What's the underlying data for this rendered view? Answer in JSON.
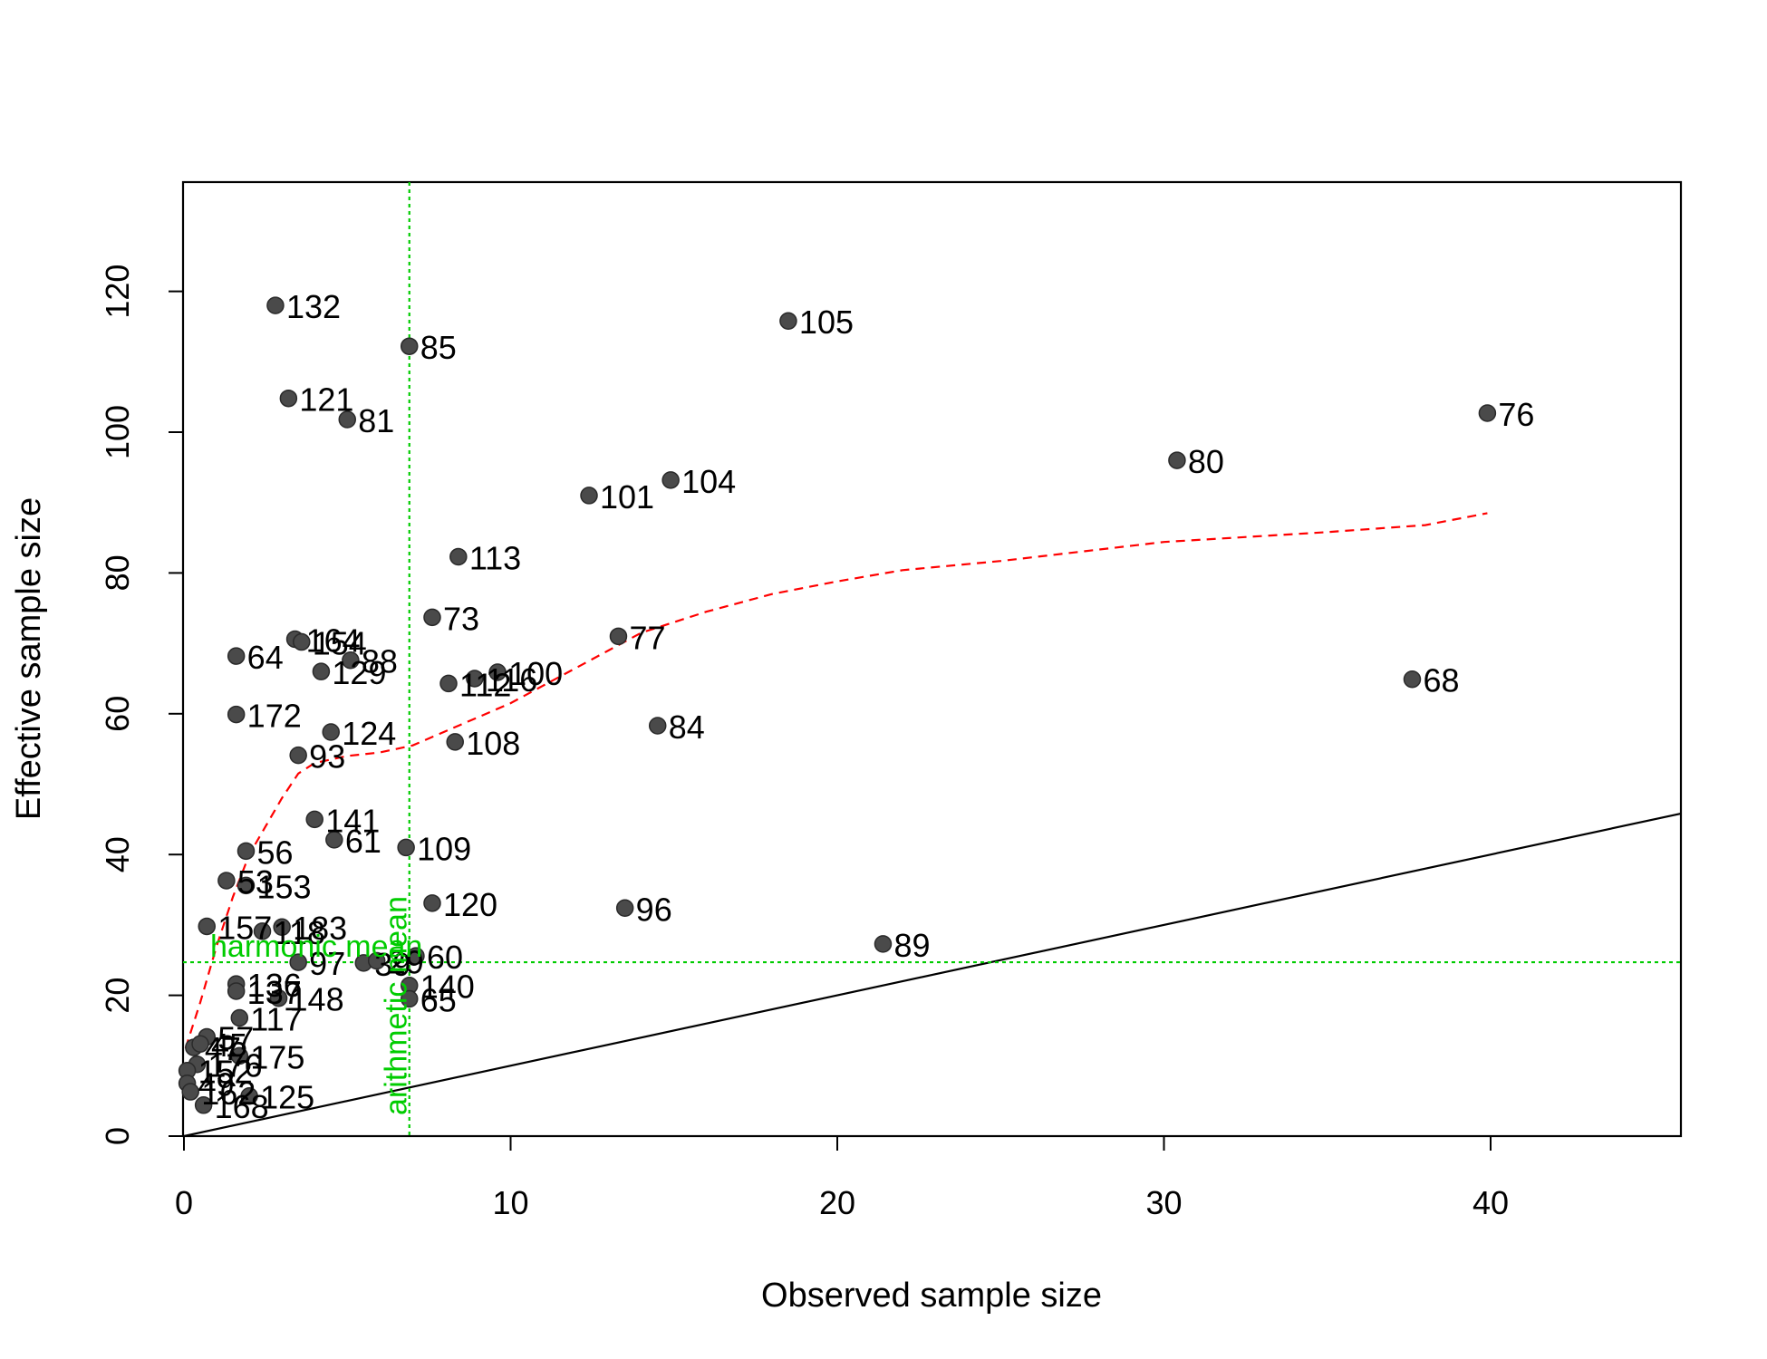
{
  "chart_data": {
    "type": "scatter",
    "title": "",
    "xlabel": "Observed sample size",
    "ylabel": "Effective sample size",
    "xlim": [
      0,
      46
    ],
    "ylim": [
      0,
      135
    ],
    "x_ticks": [
      0,
      10,
      20,
      30,
      40
    ],
    "x_tick_labels": [
      "0",
      "10",
      "20",
      "30",
      "40"
    ],
    "y_ticks": [
      0,
      20,
      40,
      60,
      80,
      100,
      120
    ],
    "y_tick_labels": [
      "0",
      "20",
      "40",
      "60",
      "80",
      "100",
      "120"
    ],
    "grid": false,
    "legend": "none",
    "point_color": "#4a4a4a",
    "points": [
      {
        "id": "132",
        "x": 2.8,
        "y": 118
      },
      {
        "id": "85",
        "x": 6.9,
        "y": 112.2
      },
      {
        "id": "105",
        "x": 18.5,
        "y": 115.8
      },
      {
        "id": "121",
        "x": 3.2,
        "y": 104.8
      },
      {
        "id": "81",
        "x": 5.0,
        "y": 101.8
      },
      {
        "id": "76",
        "x": 39.9,
        "y": 102.7
      },
      {
        "id": "80",
        "x": 30.4,
        "y": 96
      },
      {
        "id": "101",
        "x": 12.4,
        "y": 91
      },
      {
        "id": "104",
        "x": 14.9,
        "y": 93.2
      },
      {
        "id": "113",
        "x": 8.4,
        "y": 82.3
      },
      {
        "id": "73",
        "x": 7.6,
        "y": 73.7
      },
      {
        "id": "77",
        "x": 13.3,
        "y": 71
      },
      {
        "id": "164",
        "x": 3.4,
        "y": 70.6
      },
      {
        "id": "154",
        "x": 3.6,
        "y": 70.2
      },
      {
        "id": "88",
        "x": 5.1,
        "y": 67.6
      },
      {
        "id": "64",
        "x": 1.6,
        "y": 68.2
      },
      {
        "id": "129",
        "x": 4.2,
        "y": 66
      },
      {
        "id": "100",
        "x": 9.6,
        "y": 65.9
      },
      {
        "id": "116",
        "x": 8.9,
        "y": 65
      },
      {
        "id": "112",
        "x": 8.1,
        "y": 64.3
      },
      {
        "id": "68",
        "x": 37.6,
        "y": 64.9
      },
      {
        "id": "172",
        "x": 1.6,
        "y": 59.9
      },
      {
        "id": "84",
        "x": 14.5,
        "y": 58.3
      },
      {
        "id": "124",
        "x": 4.5,
        "y": 57.4
      },
      {
        "id": "108",
        "x": 8.3,
        "y": 56
      },
      {
        "id": "93",
        "x": 3.5,
        "y": 54.1
      },
      {
        "id": "141",
        "x": 4.0,
        "y": 45
      },
      {
        "id": "61",
        "x": 4.6,
        "y": 42.1
      },
      {
        "id": "109",
        "x": 6.8,
        "y": 41
      },
      {
        "id": "56",
        "x": 1.9,
        "y": 40.5
      },
      {
        "id": "53",
        "x": 1.3,
        "y": 36.3
      },
      {
        "id": "153",
        "x": 1.9,
        "y": 35.6
      },
      {
        "id": "120",
        "x": 7.6,
        "y": 33.1
      },
      {
        "id": "96",
        "x": 13.5,
        "y": 32.4
      },
      {
        "id": "157",
        "x": 0.7,
        "y": 29.8
      },
      {
        "id": "118",
        "x": 2.4,
        "y": 29.1
      },
      {
        "id": "183",
        "x": 3.0,
        "y": 29.7
      },
      {
        "id": "89",
        "x": 21.4,
        "y": 27.3
      },
      {
        "id": "97",
        "x": 3.5,
        "y": 24.7
      },
      {
        "id": "39",
        "x": 5.5,
        "y": 24.6
      },
      {
        "id": "29",
        "x": 5.9,
        "y": 24.9
      },
      {
        "id": "60",
        "x": 7.1,
        "y": 25.6
      },
      {
        "id": "136",
        "x": 1.6,
        "y": 21.6
      },
      {
        "id": "137",
        "x": 1.6,
        "y": 20.6
      },
      {
        "id": "140",
        "x": 6.9,
        "y": 21.4
      },
      {
        "id": "148",
        "x": 2.9,
        "y": 19.6
      },
      {
        "id": "65",
        "x": 6.9,
        "y": 19.5
      },
      {
        "id": "117",
        "x": 1.7,
        "y": 16.8
      },
      {
        "id": "57",
        "x": 0.7,
        "y": 14.1
      },
      {
        "id": "47",
        "x": 0.3,
        "y": 12.6
      },
      {
        "id": "45",
        "x": 0.5,
        "y": 13.1
      },
      {
        "id": "175",
        "x": 1.7,
        "y": 11.4
      },
      {
        "id": "176",
        "x": 0.4,
        "y": 10.2
      },
      {
        "id": "152",
        "x": 0.1,
        "y": 9.3
      },
      {
        "id": "49",
        "x": 0.1,
        "y": 7.5
      },
      {
        "id": "162",
        "x": 0.2,
        "y": 6.3
      },
      {
        "id": "125",
        "x": 2.0,
        "y": 5.7
      },
      {
        "id": "168",
        "x": 0.6,
        "y": 4.4
      }
    ],
    "identity_line": {
      "color": "#000000",
      "slope": 1,
      "intercept": 0
    },
    "smooth_line": {
      "color": "#ff0000",
      "style": "dashed",
      "x": [
        0.05,
        0.5,
        1.0,
        1.5,
        2.0,
        2.5,
        3.0,
        3.5,
        4.0,
        5.0,
        6.0,
        7.0,
        8.0,
        9.0,
        10.0,
        11.0,
        12.0,
        13.0,
        14.0,
        16.0,
        18.0,
        20.0,
        22.0,
        25.0,
        30.0,
        35.0,
        38.0,
        39.9
      ],
      "y": [
        12.5,
        19,
        27,
        34,
        40,
        44,
        48,
        51.5,
        53,
        54,
        54.5,
        55.5,
        57.5,
        59.5,
        61.5,
        64,
        66.5,
        69,
        71.5,
        74.5,
        77,
        78.8,
        80.4,
        81.7,
        84.4,
        85.8,
        86.8,
        88.5
      ]
    },
    "reference_lines": [
      {
        "orientation": "vertical",
        "x": 6.9,
        "color": "#00cc00",
        "style": "dotted",
        "label": "arithmetic mean"
      },
      {
        "orientation": "horizontal",
        "y": 24.7,
        "color": "#00cc00",
        "style": "dotted",
        "label": "harmonic mean"
      }
    ]
  }
}
